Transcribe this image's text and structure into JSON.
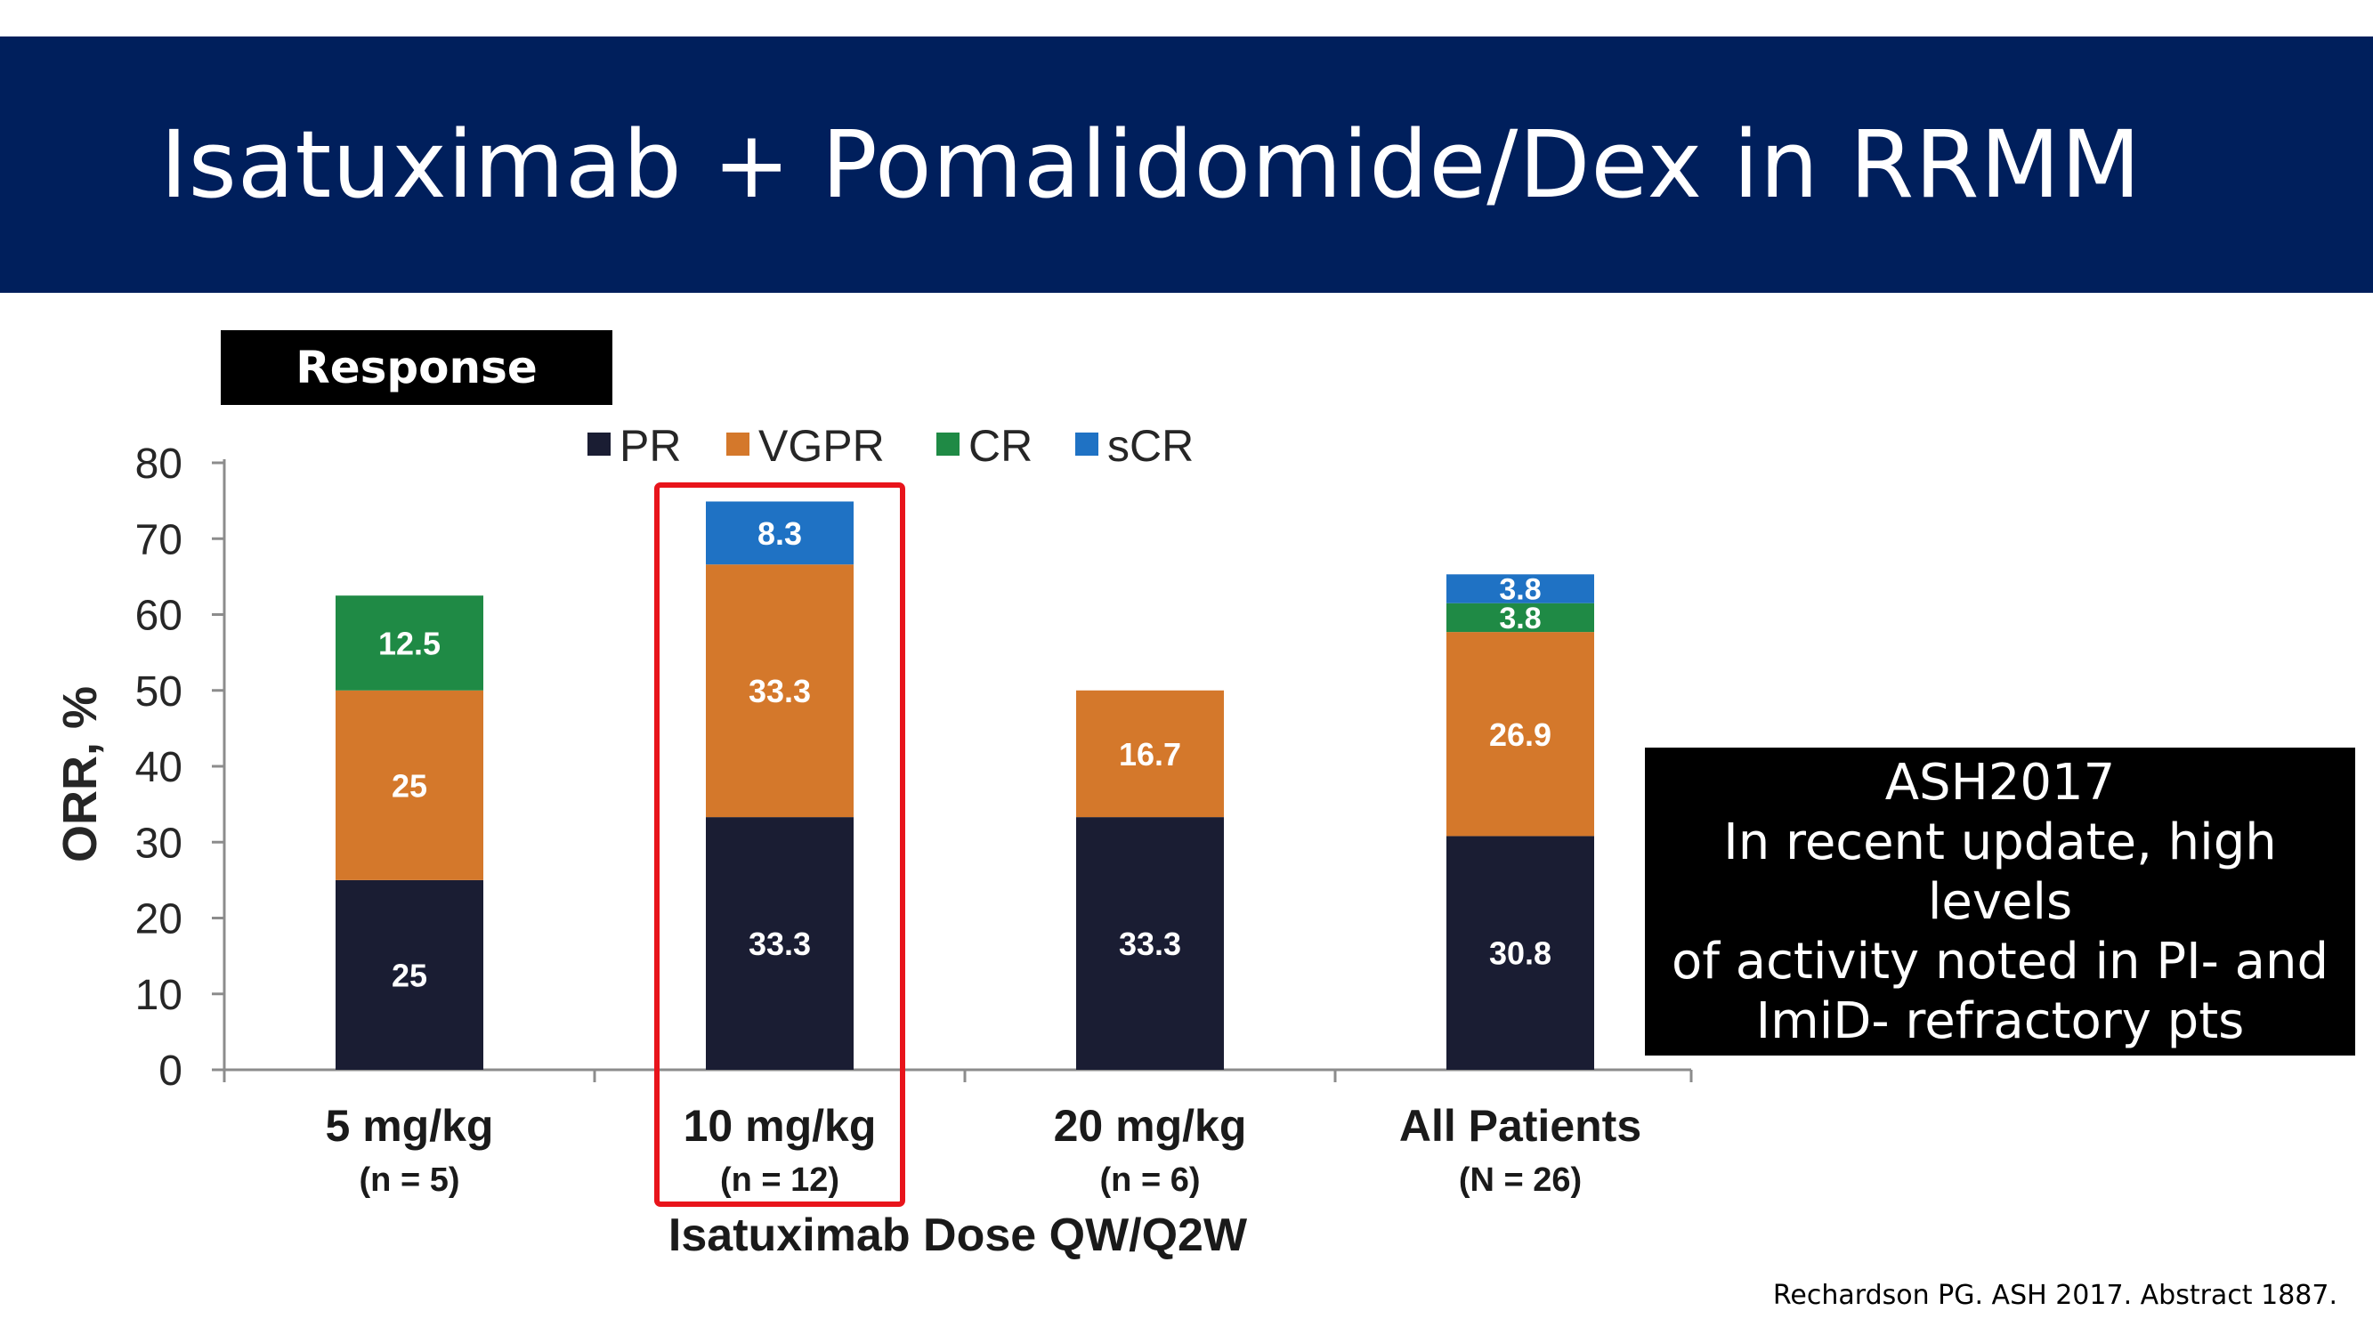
{
  "slide": {
    "title": "Isatuximab + Pomalidomide/Dex in RRMM",
    "response_label": "Response",
    "note_lines": [
      "ASH2017",
      "In recent update, high levels",
      "of activity noted in PI- and",
      "ImiD- refractory pts"
    ],
    "citation": "Rechardson PG. ASH 2017. Abstract 1887."
  },
  "chart_data": {
    "type": "bar",
    "stacked": true,
    "ylabel": "ORR, %",
    "xlabel": "Isatuximab Dose QW/Q2W",
    "ylim": [
      0,
      80
    ],
    "yticks": [
      0,
      10,
      20,
      30,
      40,
      50,
      60,
      70,
      80
    ],
    "categories": [
      "5 mg/kg",
      "10 mg/kg",
      "20 mg/kg",
      "All Patients"
    ],
    "category_sublabels": [
      "(n = 5)",
      "(n = 12)",
      "(n = 6)",
      "(N = 26)"
    ],
    "highlighted_category": "10 mg/kg",
    "legend_position": "top",
    "series": [
      {
        "name": "PR",
        "color": "#1a1d33",
        "values": [
          25,
          33.3,
          33.3,
          30.8
        ]
      },
      {
        "name": "VGPR",
        "color": "#d4782b",
        "values": [
          25,
          33.3,
          16.7,
          26.9
        ]
      },
      {
        "name": "CR",
        "color": "#1f8a45",
        "values": [
          12.5,
          0,
          0,
          3.8
        ]
      },
      {
        "name": "sCR",
        "color": "#1f72c4",
        "values": [
          0,
          8.3,
          0,
          3.8
        ]
      }
    ],
    "highlight_color": "#e8141b"
  }
}
